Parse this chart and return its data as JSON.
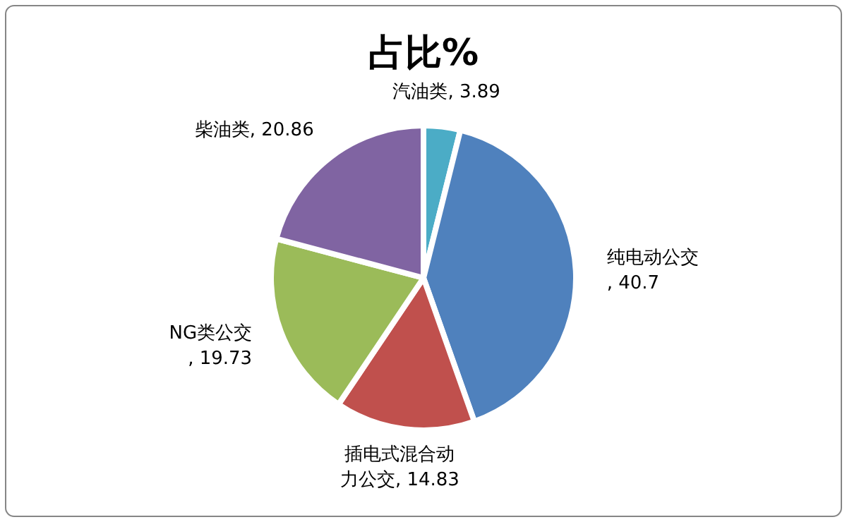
{
  "chart_data": {
    "type": "pie",
    "title": "占比%",
    "categories": [
      "汽油类",
      "纯电动公交",
      "插电式混合动力公交",
      "NG类公交",
      "柴油类"
    ],
    "values": [
      3.89,
      40.7,
      14.83,
      19.73,
      20.86
    ],
    "value_labels": [
      ", 3.89",
      ", 40.7",
      ", 14.83",
      ", 19.73",
      ", 20.86"
    ],
    "colors": [
      "#4bacc6",
      "#4f81bd",
      "#c0504d",
      "#9bbb59",
      "#8064a2"
    ]
  }
}
